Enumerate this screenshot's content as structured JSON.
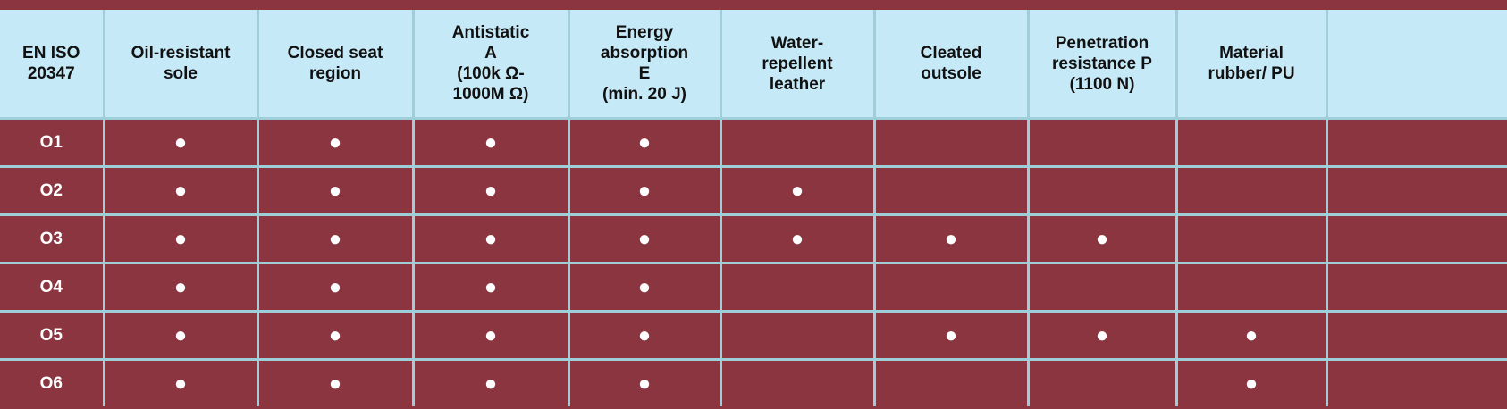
{
  "table": {
    "headers": [
      [
        "EN ISO",
        "20347"
      ],
      [
        "Oil-resistant",
        "sole"
      ],
      [
        "Closed seat",
        "region"
      ],
      [
        "Antistatic",
        "A",
        "(100k Ω-",
        "1000M Ω)"
      ],
      [
        "Energy",
        "absorption",
        "E",
        "(min. 20 J)"
      ],
      [
        "Water-",
        "repellent",
        "leather"
      ],
      [
        "Cleated",
        "outsole"
      ],
      [
        "Penetration",
        "resistance P",
        "(1100 N)"
      ],
      [
        "Material",
        "rubber/ PU"
      ]
    ],
    "rows": [
      {
        "label": "O1",
        "cells": [
          "●",
          "●",
          "●",
          "●",
          null,
          null,
          null,
          null
        ]
      },
      {
        "label": "O2",
        "cells": [
          "●",
          "●",
          "●",
          "●",
          "●",
          null,
          null,
          null
        ]
      },
      {
        "label": "O3",
        "cells": [
          "●",
          "●",
          "●",
          "●",
          "●",
          "●",
          "●",
          null
        ]
      },
      {
        "label": "O4",
        "cells": [
          "●",
          "●",
          "●",
          "●",
          null,
          null,
          null,
          null
        ]
      },
      {
        "label": "O5",
        "cells": [
          "●",
          "●",
          "●",
          "●",
          null,
          "●",
          "●",
          "●"
        ]
      },
      {
        "label": "O6",
        "cells": [
          "●",
          "●",
          "●",
          "●",
          null,
          null,
          null,
          "●"
        ]
      }
    ]
  }
}
